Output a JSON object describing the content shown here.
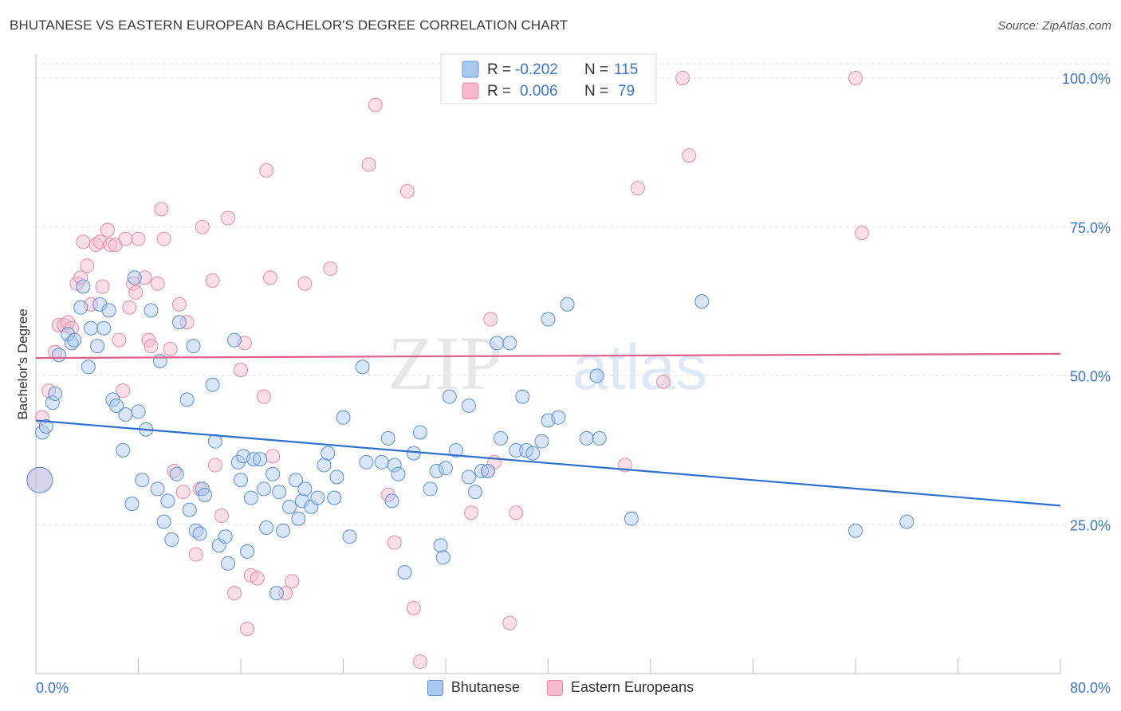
{
  "title": "BHUTANESE VS EASTERN EUROPEAN BACHELOR'S DEGREE CORRELATION CHART",
  "source": "Source: ZipAtlas.com",
  "watermark": {
    "zip": "ZIP",
    "atlas": "atlas"
  },
  "colors": {
    "bhutanese_fill": "#a9c8ef",
    "bhutanese_stroke": "#5b8fd6",
    "bhutanese_line": "#2e6fce",
    "eastern_fill": "#f5b8cc",
    "eastern_stroke": "#e68aa9",
    "eastern_line": "#e0608a",
    "value_text": "#3b74c9"
  },
  "legend_box": {
    "rows": [
      {
        "r_label": "R =",
        "r_value": "-0.202",
        "n_label": "N =",
        "n_value": "115"
      },
      {
        "r_label": "R =",
        "r_value": "0.006",
        "n_label": "N =",
        "n_value": "79"
      }
    ]
  },
  "legend_bottom": {
    "bhutanese": "Bhutanese",
    "eastern": "Eastern Europeans"
  },
  "chart_data": {
    "type": "scatter",
    "title": "BHUTANESE VS EASTERN EUROPEAN BACHELOR'S DEGREE CORRELATION CHART",
    "xlabel": "",
    "ylabel": "Bachelor's Degree",
    "xlim": [
      0,
      80
    ],
    "ylim": [
      0,
      100
    ],
    "x_tick_labels": [
      "0.0%",
      "80.0%"
    ],
    "y_ticks": [
      25,
      50,
      75,
      100
    ],
    "y_tick_labels": [
      "25.0%",
      "50.0%",
      "75.0%",
      "100.0%"
    ],
    "grid": true,
    "legend_position": "top-center",
    "series": [
      {
        "name": "Bhutanese",
        "r": -0.202,
        "n": 115,
        "trend": {
          "x": [
            0,
            80
          ],
          "y": [
            42.5,
            28.2
          ]
        },
        "points": [
          [
            0.3,
            32.5
          ],
          [
            0.5,
            40.5
          ],
          [
            0.8,
            41.5
          ],
          [
            1.3,
            45.5
          ],
          [
            1.5,
            47
          ],
          [
            1.8,
            53.5
          ],
          [
            2.5,
            57
          ],
          [
            2.8,
            55.5
          ],
          [
            3,
            56
          ],
          [
            3.5,
            61.5
          ],
          [
            3.7,
            65
          ],
          [
            4.1,
            51.5
          ],
          [
            4.3,
            58
          ],
          [
            4.8,
            55
          ],
          [
            5,
            62
          ],
          [
            5.3,
            58
          ],
          [
            5.7,
            61
          ],
          [
            6,
            46
          ],
          [
            6.3,
            45
          ],
          [
            6.8,
            37.5
          ],
          [
            7,
            43.5
          ],
          [
            7.5,
            28.5
          ],
          [
            7.7,
            66.5
          ],
          [
            8,
            44
          ],
          [
            8.3,
            32.5
          ],
          [
            8.6,
            41
          ],
          [
            9,
            61
          ],
          [
            9.5,
            31
          ],
          [
            9.7,
            52.5
          ],
          [
            10,
            25.5
          ],
          [
            10.3,
            29
          ],
          [
            10.6,
            22.5
          ],
          [
            11,
            33.5
          ],
          [
            11.2,
            59
          ],
          [
            11.8,
            46
          ],
          [
            12,
            27.5
          ],
          [
            12.3,
            55
          ],
          [
            12.5,
            24
          ],
          [
            12.8,
            23.5
          ],
          [
            13,
            31
          ],
          [
            13.2,
            30
          ],
          [
            13.8,
            48.5
          ],
          [
            14,
            39
          ],
          [
            14.3,
            21.5
          ],
          [
            14.8,
            23
          ],
          [
            15,
            18.5
          ],
          [
            15.5,
            56
          ],
          [
            15.8,
            35.5
          ],
          [
            16,
            32.5
          ],
          [
            16.2,
            36.5
          ],
          [
            16.5,
            20.5
          ],
          [
            16.8,
            29.5
          ],
          [
            17,
            36
          ],
          [
            17.5,
            36
          ],
          [
            17.8,
            31
          ],
          [
            18,
            24.5
          ],
          [
            18.5,
            33.5
          ],
          [
            18.8,
            13.5
          ],
          [
            19,
            30.5
          ],
          [
            19.3,
            24
          ],
          [
            19.8,
            28
          ],
          [
            20.3,
            32.5
          ],
          [
            20.5,
            26
          ],
          [
            20.8,
            29
          ],
          [
            21,
            31
          ],
          [
            21.5,
            28
          ],
          [
            22,
            29.5
          ],
          [
            22.5,
            35
          ],
          [
            22.8,
            37
          ],
          [
            23.3,
            29.5
          ],
          [
            23.5,
            33
          ],
          [
            24,
            43
          ],
          [
            24.5,
            23
          ],
          [
            25.5,
            51.5
          ],
          [
            25.8,
            35.5
          ],
          [
            27,
            35.5
          ],
          [
            27.5,
            39.5
          ],
          [
            27.8,
            29
          ],
          [
            28,
            35
          ],
          [
            28.3,
            33.5
          ],
          [
            28.8,
            17
          ],
          [
            29.5,
            37
          ],
          [
            30,
            40.5
          ],
          [
            30.8,
            31
          ],
          [
            31.3,
            34
          ],
          [
            31.6,
            21.5
          ],
          [
            31.8,
            19.5
          ],
          [
            32,
            34.5
          ],
          [
            32.3,
            46.5
          ],
          [
            32.8,
            37.5
          ],
          [
            33.8,
            45
          ],
          [
            33.8,
            33
          ],
          [
            34.3,
            30.5
          ],
          [
            34.8,
            34
          ],
          [
            35.3,
            34
          ],
          [
            36,
            55.5
          ],
          [
            36.3,
            39.5
          ],
          [
            37,
            55.5
          ],
          [
            37.5,
            37.5
          ],
          [
            38,
            46.5
          ],
          [
            38.3,
            37.5
          ],
          [
            38.8,
            37
          ],
          [
            39.5,
            39
          ],
          [
            40,
            42.5
          ],
          [
            40,
            59.5
          ],
          [
            40.8,
            43
          ],
          [
            41.5,
            62
          ],
          [
            43,
            39.5
          ],
          [
            43.8,
            50
          ],
          [
            44,
            39.5
          ],
          [
            46.5,
            26
          ],
          [
            52,
            62.5
          ],
          [
            64,
            24
          ],
          [
            68,
            25.5
          ]
        ]
      },
      {
        "name": "Eastern Europeans",
        "r": 0.006,
        "n": 79,
        "trend": {
          "x": [
            0,
            80
          ],
          "y": [
            53.0,
            53.7
          ]
        },
        "points": [
          [
            0.3,
            32.5
          ],
          [
            0.5,
            43
          ],
          [
            1,
            47.5
          ],
          [
            1.5,
            54
          ],
          [
            1.8,
            58.5
          ],
          [
            2.2,
            58.5
          ],
          [
            2.5,
            59
          ],
          [
            2.8,
            58
          ],
          [
            3.2,
            65.5
          ],
          [
            3.5,
            66.5
          ],
          [
            3.7,
            72.5
          ],
          [
            4,
            68.5
          ],
          [
            4.3,
            62
          ],
          [
            4.7,
            72
          ],
          [
            5,
            72.5
          ],
          [
            5.2,
            65
          ],
          [
            5.6,
            74.5
          ],
          [
            5.8,
            72
          ],
          [
            6.2,
            72
          ],
          [
            6.5,
            56
          ],
          [
            6.8,
            47.5
          ],
          [
            7,
            73
          ],
          [
            7.3,
            61.5
          ],
          [
            7.6,
            65.5
          ],
          [
            7.8,
            64
          ],
          [
            8,
            73
          ],
          [
            8.5,
            66.5
          ],
          [
            8.8,
            56
          ],
          [
            9,
            55
          ],
          [
            9.5,
            65.5
          ],
          [
            9.8,
            78
          ],
          [
            10,
            73
          ],
          [
            10.5,
            54.5
          ],
          [
            10.8,
            34
          ],
          [
            11.2,
            62
          ],
          [
            11.8,
            59
          ],
          [
            11.5,
            30.5
          ],
          [
            12.5,
            20
          ],
          [
            12.8,
            31
          ],
          [
            13,
            75
          ],
          [
            13.8,
            66
          ],
          [
            14,
            35
          ],
          [
            14.5,
            26.5
          ],
          [
            15,
            76.5
          ],
          [
            15.5,
            13.5
          ],
          [
            16,
            51
          ],
          [
            16.3,
            55.5
          ],
          [
            16.5,
            7.5
          ],
          [
            16.8,
            16.5
          ],
          [
            17.3,
            16
          ],
          [
            17.8,
            46.5
          ],
          [
            18,
            84.5
          ],
          [
            18.3,
            66.5
          ],
          [
            18.5,
            36.5
          ],
          [
            19.5,
            13.5
          ],
          [
            20,
            15.5
          ],
          [
            21,
            65.5
          ],
          [
            23,
            68
          ],
          [
            26,
            85.5
          ],
          [
            26.5,
            95.5
          ],
          [
            27.5,
            30
          ],
          [
            28,
            22
          ],
          [
            29,
            81
          ],
          [
            29.5,
            11
          ],
          [
            30,
            2
          ],
          [
            34,
            27
          ],
          [
            35.5,
            59.5
          ],
          [
            35.8,
            35.5
          ],
          [
            35.3,
            34
          ],
          [
            37,
            8.5
          ],
          [
            37.5,
            27
          ],
          [
            46,
            35
          ],
          [
            47,
            81.5
          ],
          [
            49,
            49
          ],
          [
            50.5,
            100
          ],
          [
            51,
            87
          ],
          [
            64,
            100
          ],
          [
            64.5,
            74
          ]
        ]
      }
    ]
  }
}
